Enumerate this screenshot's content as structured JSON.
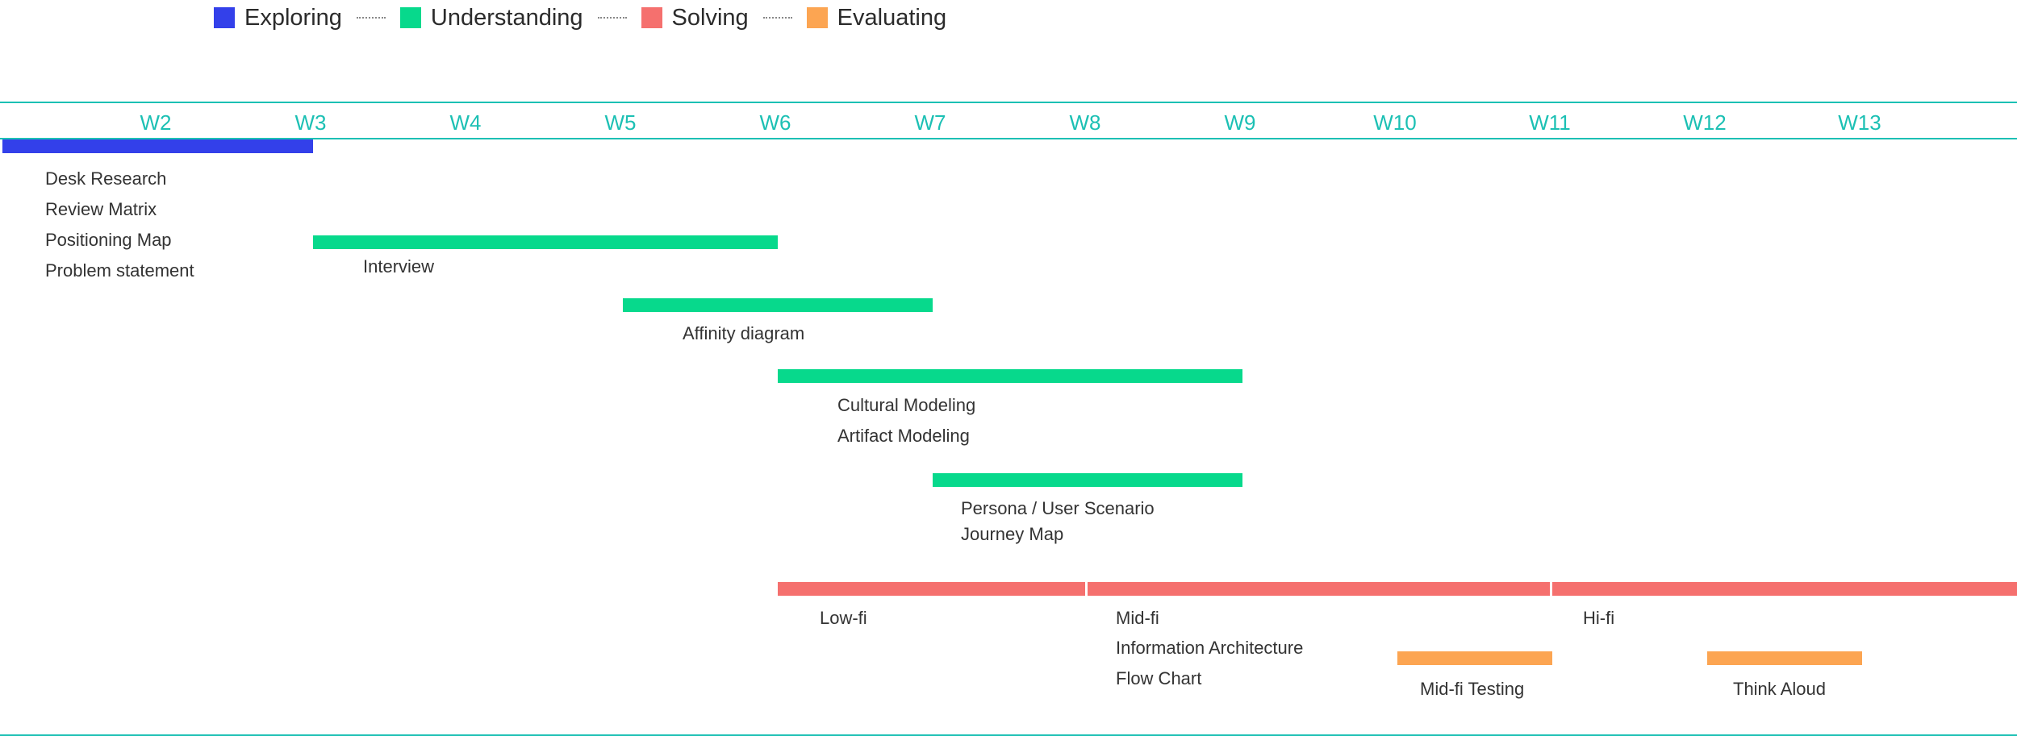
{
  "legend": [
    {
      "label": "Exploring",
      "color": "#3340ea"
    },
    {
      "label": "Understanding",
      "color": "#07d98c"
    },
    {
      "label": "Solving",
      "color": "#f5706e"
    },
    {
      "label": "Evaluating",
      "color": "#fca552"
    }
  ],
  "colors": {
    "axis": "#1cc0b4",
    "exploring": "#3340ea",
    "understanding": "#07d98c",
    "solving": "#f5706e",
    "evaluating": "#fca552"
  },
  "chart_data": {
    "type": "bar",
    "orientation": "horizontal-gantt",
    "x_unit": "week",
    "x_ticks": [
      "W2",
      "W3",
      "W4",
      "W5",
      "W6",
      "W7",
      "W8",
      "W9",
      "W10",
      "W11",
      "W12",
      "W13"
    ],
    "xlim": [
      1,
      14
    ],
    "bars": [
      {
        "phase": "Exploring",
        "start": 1,
        "end": 3,
        "labels": [
          "Desk Research",
          "Review Matrix",
          "Positioning Map",
          "Problem statement"
        ]
      },
      {
        "phase": "Understanding",
        "start": 3,
        "end": 6,
        "labels": [
          "Interview"
        ]
      },
      {
        "phase": "Understanding",
        "start": 5,
        "end": 7,
        "labels": [
          "Affinity diagram"
        ]
      },
      {
        "phase": "Understanding",
        "start": 6,
        "end": 9,
        "labels": [
          "Cultural Modeling",
          "Artifact Modeling"
        ]
      },
      {
        "phase": "Understanding",
        "start": 7,
        "end": 9,
        "labels": [
          "Persona / User Scenario",
          "Journey Map"
        ]
      },
      {
        "phase": "Solving",
        "start": 6,
        "end": 8,
        "labels": [
          "Low-fi"
        ]
      },
      {
        "phase": "Solving",
        "start": 8,
        "end": 11,
        "labels": [
          "Mid-fi",
          "Information Architecture",
          "Flow Chart"
        ]
      },
      {
        "phase": "Solving",
        "start": 11,
        "end": 14,
        "labels": [
          "Hi-fi"
        ]
      },
      {
        "phase": "Evaluating",
        "start": 10,
        "end": 11,
        "labels": [
          "Mid-fi Testing"
        ]
      },
      {
        "phase": "Evaluating",
        "start": 12,
        "end": 13,
        "labels": [
          "Think Aloud"
        ]
      }
    ]
  }
}
